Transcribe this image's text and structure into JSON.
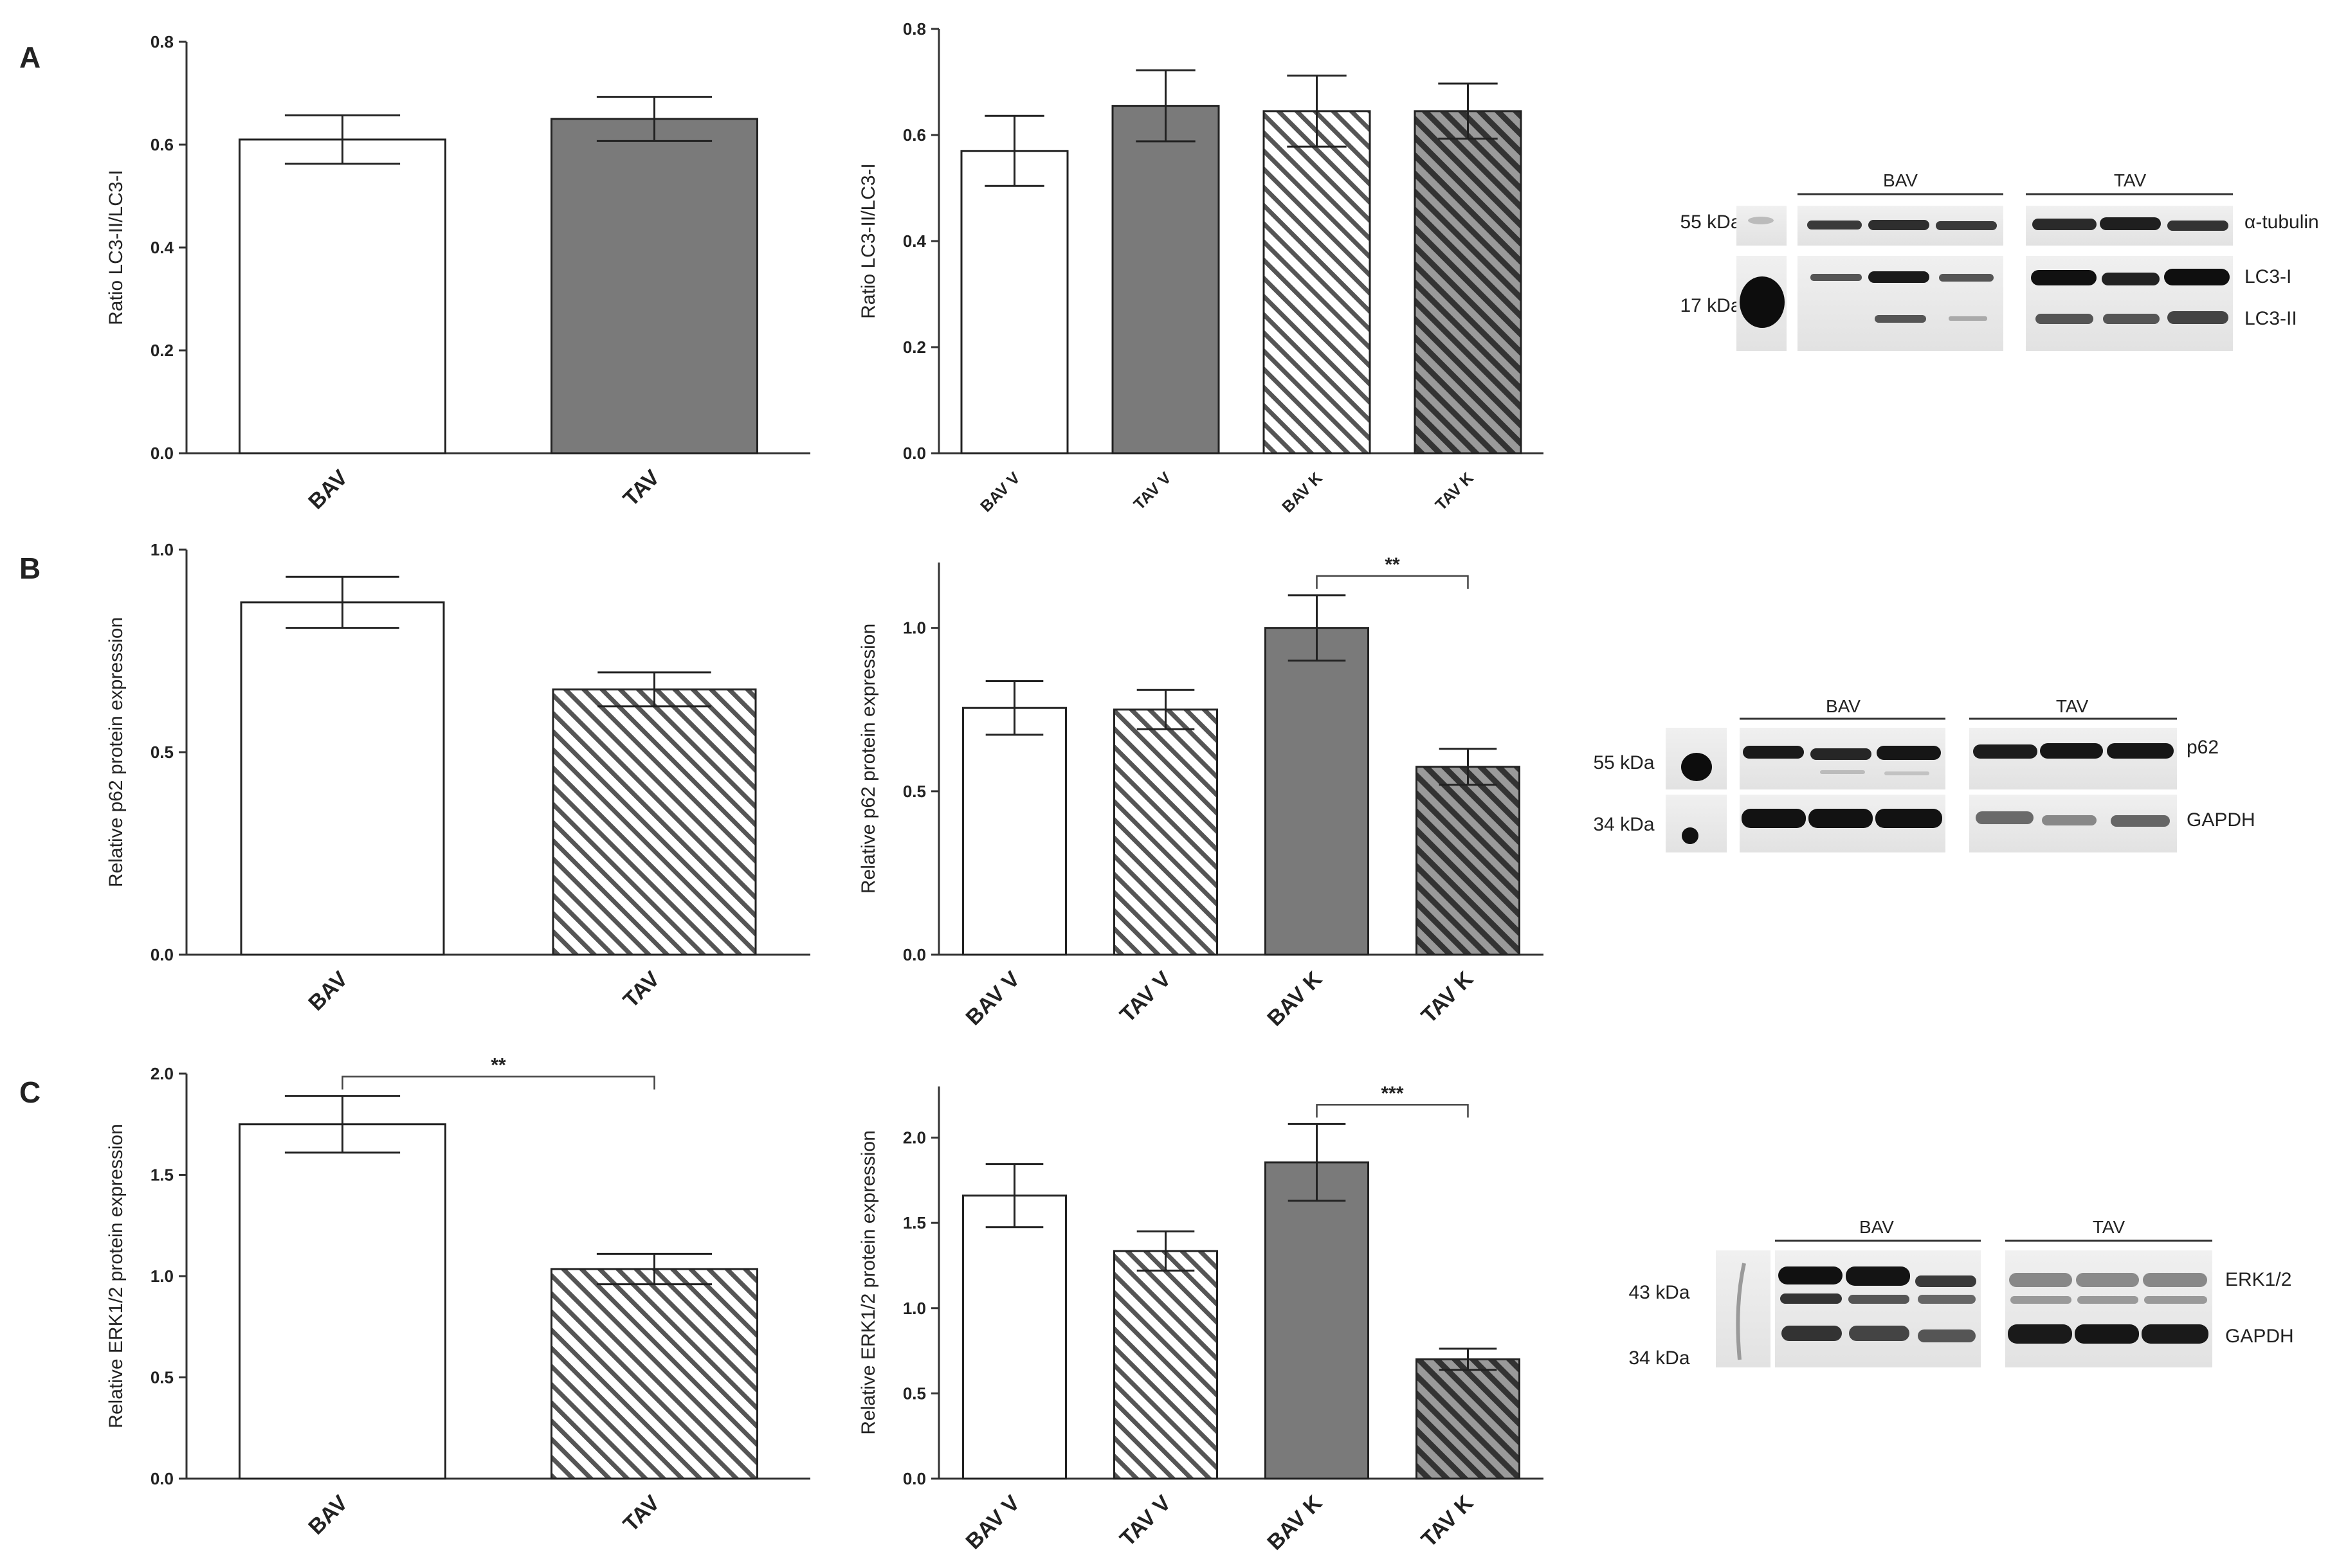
{
  "chart_data": [
    {
      "id": "A1",
      "panel": "A",
      "type": "bar",
      "ylabel": "Ratio LC3-II/LC3-I",
      "ylim": [
        0,
        0.8
      ],
      "ticks": [
        0.0,
        0.2,
        0.4,
        0.6,
        0.8
      ],
      "tick_labels": [
        "0.0",
        "0.2",
        "0.4",
        "0.6",
        "0.8"
      ],
      "categories": [
        "BAV",
        "TAV"
      ],
      "values": [
        0.61,
        0.65
      ],
      "errors": [
        0.047,
        0.043
      ],
      "fills": [
        "white",
        "gray"
      ],
      "significance": []
    },
    {
      "id": "A2",
      "panel": "A",
      "type": "bar",
      "ylabel": "Ratio LC3-II/LC3-I",
      "ylim": [
        0,
        0.8
      ],
      "ticks": [
        0.0,
        0.2,
        0.4,
        0.6,
        0.8
      ],
      "tick_labels": [
        "0.0",
        "0.2",
        "0.4",
        "0.6",
        "0.8"
      ],
      "categories": [
        "BAV V",
        "TAV V",
        "BAV K",
        "TAV K"
      ],
      "values": [
        0.57,
        0.655,
        0.645,
        0.645
      ],
      "errors": [
        0.066,
        0.067,
        0.067,
        0.052
      ],
      "fills": [
        "white",
        "gray",
        "hatch-light",
        "hatch-dark"
      ],
      "significance": []
    },
    {
      "id": "B1",
      "panel": "B",
      "type": "bar",
      "ylabel": "Relative p62  protein expression",
      "ylim": [
        0,
        1.0
      ],
      "ticks": [
        0.0,
        0.5,
        1.0
      ],
      "tick_labels": [
        "0.0",
        "0.5",
        "1.0"
      ],
      "categories": [
        "BAV",
        "TAV"
      ],
      "values": [
        0.87,
        0.655
      ],
      "errors": [
        0.063,
        0.042
      ],
      "fills": [
        "white",
        "hatch-light"
      ],
      "significance": []
    },
    {
      "id": "B2",
      "panel": "B",
      "type": "bar",
      "ylabel": "Relative p62  protein expression",
      "ylim": [
        0,
        1.2
      ],
      "ticks": [
        0.0,
        0.5,
        1.0
      ],
      "tick_labels": [
        "0.0",
        "0.5",
        "1.0"
      ],
      "categories": [
        "BAV V",
        "TAV V",
        "BAV K",
        "TAV K"
      ],
      "values": [
        0.755,
        0.75,
        1.0,
        0.575
      ],
      "errors": [
        0.082,
        0.06,
        0.1,
        0.055
      ],
      "fills": [
        "white",
        "hatch-light",
        "gray",
        "hatch-dark"
      ],
      "significance": [
        {
          "from": 2,
          "to": 3,
          "label": "**"
        }
      ]
    },
    {
      "id": "C1",
      "panel": "C",
      "type": "bar",
      "ylabel": "Relative ERK1/2  protein expression",
      "ylim": [
        0,
        2.0
      ],
      "ticks": [
        0.0,
        0.5,
        1.0,
        1.5,
        2.0
      ],
      "tick_labels": [
        "0.0",
        "0.5",
        "1.0",
        "1.5",
        "2.0"
      ],
      "categories": [
        "BAV",
        "TAV"
      ],
      "values": [
        1.75,
        1.035
      ],
      "errors": [
        0.14,
        0.075
      ],
      "fills": [
        "white",
        "hatch-light"
      ],
      "significance": [
        {
          "from": 0,
          "to": 1,
          "label": "**"
        }
      ]
    },
    {
      "id": "C2",
      "panel": "C",
      "type": "bar",
      "ylabel": "Relative ERK1/2  protein expression",
      "ylim": [
        0,
        2.3
      ],
      "ticks": [
        0.0,
        0.5,
        1.0,
        1.5,
        2.0
      ],
      "tick_labels": [
        "0.0",
        "0.5",
        "1.0",
        "1.5",
        "2.0"
      ],
      "categories": [
        "BAV V",
        "TAV V",
        "BAV K",
        "TAV K"
      ],
      "values": [
        1.66,
        1.335,
        1.855,
        0.7
      ],
      "errors": [
        0.185,
        0.115,
        0.225,
        0.062
      ],
      "fills": [
        "white",
        "hatch-light",
        "gray",
        "hatch-dark"
      ],
      "significance": [
        {
          "from": 2,
          "to": 3,
          "label": "***"
        }
      ]
    }
  ],
  "panel_letters": [
    "A",
    "B",
    "C"
  ],
  "blots": {
    "A": {
      "groups": [
        "BAV",
        "TAV"
      ],
      "markers": [
        "55 kDa",
        "17 kDa"
      ],
      "proteins": [
        "α-tubulin",
        "LC3-I",
        "LC3-II"
      ]
    },
    "B": {
      "groups": [
        "BAV",
        "TAV"
      ],
      "markers": [
        "55 kDa",
        "34 kDa"
      ],
      "proteins": [
        "p62",
        "GAPDH"
      ]
    },
    "C": {
      "groups": [
        "BAV",
        "TAV"
      ],
      "markers": [
        "43 kDa",
        "34 kDa"
      ],
      "proteins": [
        "ERK1/2",
        "GAPDH"
      ]
    }
  }
}
